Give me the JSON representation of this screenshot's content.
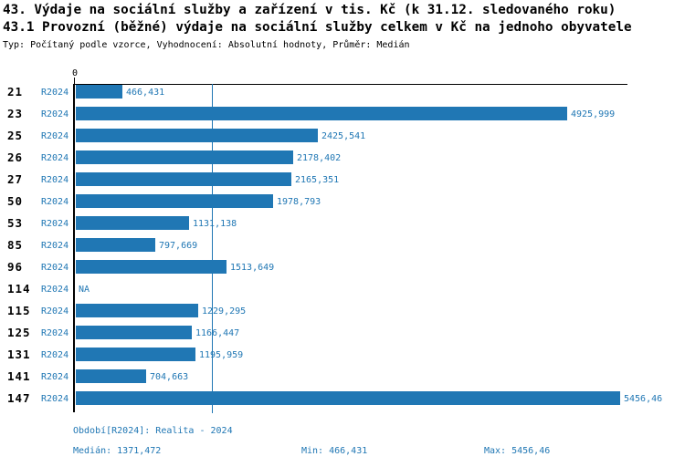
{
  "title": "43. Výdaje na sociální služby a zařízení v tis. Kč (k 31.12. sledovaného roku)",
  "subtitle": "43.1 Provozní (běžné) výdaje na sociální služby celkem v Kč na jednoho obyvatele",
  "meta": "Typ: Počítaný podle vzorce, Vyhodnocení: Absolutní hodnoty, Průměr: Medián",
  "colors": {
    "bar": "#2077b4",
    "blue_text": "#2077b4",
    "median_line": "#2077b4",
    "axis": "#000000"
  },
  "chart_data": {
    "type": "bar",
    "orientation": "horizontal",
    "axis_origin_label": "0",
    "axis_range": [
      0,
      5540
    ],
    "median_value": 1371.472,
    "series_label": "R2024",
    "categories": [
      "21",
      "23",
      "25",
      "26",
      "27",
      "50",
      "53",
      "85",
      "96",
      "114",
      "115",
      "125",
      "131",
      "141",
      "147"
    ],
    "values": [
      466.431,
      4925.999,
      2425.541,
      2178.402,
      2165.351,
      1978.793,
      1131.138,
      797.669,
      1513.649,
      null,
      1229.295,
      1166.447,
      1195.959,
      704.663,
      5456.46
    ],
    "value_labels": [
      "466,431",
      "4925,999",
      "2425,541",
      "2178,402",
      "2165,351",
      "1978,793",
      "1131,138",
      "797,669",
      "1513,649",
      "NA",
      "1229,295",
      "1166,447",
      "1195,959",
      "704,663",
      "5456,46"
    ],
    "legend_position": "none",
    "grid": false
  },
  "footer": {
    "period": "Období[R2024]: Realita - 2024",
    "median": "Medián: 1371,472",
    "min": "Min: 466,431",
    "max": "Max: 5456,46"
  }
}
